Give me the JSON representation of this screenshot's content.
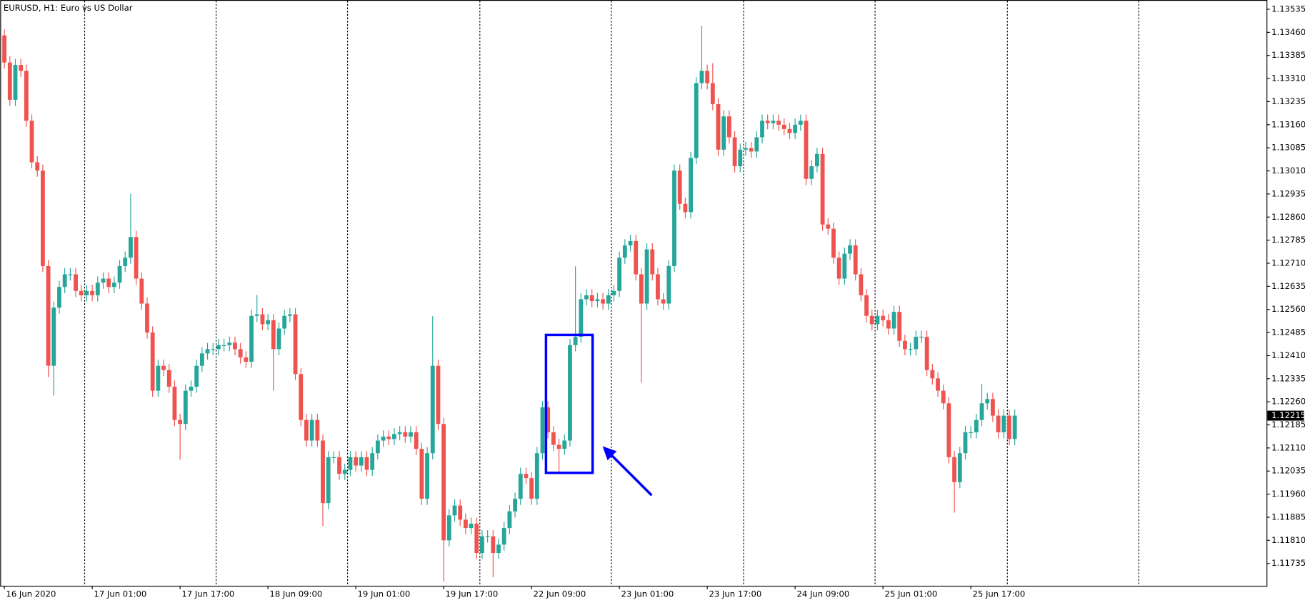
{
  "chart_data": {
    "type": "candlestick",
    "title": "EURUSD, H1:  Euro vs US Dollar",
    "up_color": "#26a69a",
    "down_color": "#ef5350",
    "grid": false,
    "ylim": [
      1.11662,
      1.13557
    ],
    "yticks": [
      1.13535,
      {
        "value": 1.1346,
        "label": "1.13460"
      },
      1.13385,
      {
        "value": 1.1331,
        "label": "1.13310"
      },
      1.13235,
      {
        "value": 1.1316,
        "label": "1.13160"
      },
      1.13085,
      {
        "value": 1.1301,
        "label": "1.13010"
      },
      1.12935,
      {
        "value": 1.1286,
        "label": "1.12860"
      },
      1.12785,
      {
        "value": 1.1271,
        "label": "1.12710"
      },
      1.12635,
      {
        "value": 1.1256,
        "label": "1.12560"
      },
      1.12485,
      {
        "value": 1.1241,
        "label": "1.12410"
      },
      1.12335,
      {
        "value": 1.1226,
        "label": "1.12260"
      },
      1.12185,
      {
        "value": 1.1211,
        "label": "1.12110"
      },
      1.12035,
      {
        "value": 1.1196,
        "label": "1.11960"
      },
      1.11885,
      {
        "value": 1.1181,
        "label": "1.11810"
      },
      1.11735
    ],
    "last_price": 1.12215,
    "categories": [
      "16 Jun 2020",
      null,
      null,
      null,
      null,
      null,
      null,
      null,
      null,
      null,
      null,
      null,
      null,
      null,
      null,
      null,
      "17 Jun 01:00",
      null,
      null,
      null,
      null,
      null,
      null,
      null,
      null,
      null,
      null,
      null,
      null,
      null,
      null,
      null,
      "17 Jun 17:00",
      null,
      null,
      null,
      null,
      null,
      null,
      null,
      null,
      null,
      null,
      null,
      null,
      null,
      null,
      null,
      "18 Jun 09:00",
      null,
      null,
      null,
      null,
      null,
      null,
      null,
      null,
      null,
      null,
      null,
      null,
      null,
      null,
      null,
      "19 Jun 01:00",
      null,
      null,
      null,
      null,
      null,
      null,
      null,
      null,
      null,
      null,
      null,
      null,
      null,
      null,
      null,
      "19 Jun 17:00",
      null,
      null,
      null,
      null,
      null,
      null,
      null,
      null,
      null,
      null,
      null,
      null,
      null,
      null,
      null,
      "22 Jun 09:00",
      null,
      null,
      null,
      null,
      null,
      null,
      null,
      null,
      null,
      null,
      null,
      null,
      null,
      null,
      null,
      "23 Jun 01:00",
      null,
      null,
      null,
      null,
      null,
      null,
      null,
      null,
      null,
      null,
      null,
      null,
      null,
      null,
      null,
      "23 Jun 17:00",
      null,
      null,
      null,
      null,
      null,
      null,
      null,
      null,
      null,
      null,
      null,
      null,
      null,
      null,
      null,
      "24 Jun 09:00",
      null,
      null,
      null,
      null,
      null,
      null,
      null,
      null,
      null,
      null,
      null,
      null,
      null,
      null,
      null,
      "25 Jun 01:00",
      null,
      null,
      null,
      null,
      null,
      null,
      null,
      null,
      null,
      null,
      null,
      null,
      null,
      null,
      null,
      "25 Jun 17:00",
      null,
      null,
      null,
      null,
      null,
      null,
      null,
      null
    ],
    "open": [
      1.1345,
      1.13362,
      1.13241,
      1.13354,
      1.13335,
      1.13173,
      1.13038,
      1.13011,
      1.12701,
      1.12377,
      1.12566,
      1.12633,
      1.12674,
      1.12674,
      1.1262,
      1.12606,
      1.1262,
      1.12606,
      1.12647,
      1.1266,
      1.12633,
      1.12647,
      1.12701,
      1.12728,
      1.12795,
      1.1266,
      1.12579,
      1.12485,
      1.12296,
      1.12377,
      1.12363,
      1.12309,
      1.12201,
      1.12188,
      1.12296,
      1.12309,
      1.12377,
      1.12417,
      1.12431,
      1.12431,
      1.12444,
      1.12444,
      1.12452,
      1.12431,
      1.12404,
      1.1239,
      1.12539,
      1.12544,
      1.12512,
      1.12525,
      1.12431,
      1.12498,
      1.12539,
      1.12544,
      1.1235,
      1.12201,
      1.12134,
      1.12201,
      1.12134,
      1.11931,
      1.1208,
      1.1208,
      1.12026,
      1.12039,
      1.1208,
      1.12053,
      1.1208,
      1.12039,
      1.12093,
      1.12134,
      1.12147,
      1.12139,
      1.12155,
      1.12161,
      1.12147,
      1.12161,
      1.12107,
      1.11945,
      1.12093,
      1.12377,
      1.12188,
      1.1181,
      1.11891,
      1.11923,
      1.11877,
      1.1185,
      1.11864,
      1.11769,
      1.11823,
      1.11823,
      1.11769,
      1.11796,
      1.1185,
      1.11904,
      1.11945,
      1.12026,
      1.12012,
      1.11945,
      1.12093,
      1.12242,
      1.12161,
      1.1212,
      1.12107,
      1.12134,
      1.12444,
      1.12471,
      1.12593,
      1.12606,
      1.12587,
      1.12593,
      1.12579,
      1.12606,
      1.1262,
      1.12728,
      1.12768,
      1.12782,
      1.12674,
      1.12579,
      1.12755,
      1.12674,
      1.12593,
      1.12579,
      1.12701,
      1.13011,
      1.12903,
      1.12876,
      1.13052,
      1.13295,
      1.13335,
      1.13295,
      1.13227,
      1.13079,
      1.13187,
      1.13119,
      1.13025,
      1.13079,
      1.13084,
      1.13073,
      1.13119,
      1.13173,
      1.13165,
      1.13173,
      1.1316,
      1.13146,
      1.13133,
      1.1316,
      1.13173,
      1.12984,
      1.13025,
      1.13065,
      1.12836,
      1.12822,
      1.12728,
      1.1266,
      1.12741,
      1.12768,
      1.12674,
      1.12606,
      1.12539,
      1.12512,
      1.12539,
      1.12525,
      1.12498,
      1.12552,
      1.12458,
      1.12431,
      1.12431,
      1.12471,
      1.12471,
      1.12363,
      1.12336,
      1.12296,
      1.12255,
      1.1208,
      1.11999,
      1.12093,
      1.12161,
      1.12161,
      1.12201,
      1.12255,
      1.12269,
      1.12215,
      1.12161,
      1.12215,
      1.12139
    ],
    "high": [
      1.1347,
      1.13382,
      1.13374,
      1.13374,
      1.13355,
      1.13193,
      1.13058,
      1.13031,
      1.12721,
      1.12586,
      1.12653,
      1.12694,
      1.12694,
      1.12694,
      1.1264,
      1.1264,
      1.1264,
      1.12667,
      1.1268,
      1.1268,
      1.12667,
      1.12721,
      1.12748,
      1.12936,
      1.12815,
      1.1268,
      1.12599,
      1.12505,
      1.12397,
      1.12397,
      1.12383,
      1.12329,
      1.12221,
      1.12316,
      1.12329,
      1.12397,
      1.12437,
      1.12451,
      1.12451,
      1.12464,
      1.12464,
      1.12472,
      1.12472,
      1.12451,
      1.12424,
      1.12559,
      1.12607,
      1.12564,
      1.12545,
      1.12545,
      1.12518,
      1.12559,
      1.12564,
      1.12564,
      1.1237,
      1.12221,
      1.12221,
      1.12221,
      1.12154,
      1.121,
      1.121,
      1.121,
      1.12059,
      1.121,
      1.121,
      1.121,
      1.121,
      1.12113,
      1.12154,
      1.12167,
      1.12167,
      1.12175,
      1.12181,
      1.12181,
      1.12181,
      1.12181,
      1.12127,
      1.12113,
      1.12538,
      1.12397,
      1.12208,
      1.11911,
      1.11943,
      1.11943,
      1.11897,
      1.11884,
      1.11884,
      1.11843,
      1.11843,
      1.11843,
      1.11816,
      1.1187,
      1.11924,
      1.11965,
      1.12046,
      1.12046,
      1.12032,
      1.12113,
      1.12262,
      1.12262,
      1.12181,
      1.1214,
      1.12154,
      1.12464,
      1.127,
      1.12613,
      1.12626,
      1.12626,
      1.12613,
      1.12613,
      1.12626,
      1.1264,
      1.12748,
      1.12788,
      1.12802,
      1.12802,
      1.12694,
      1.12775,
      1.12775,
      1.12694,
      1.12613,
      1.12721,
      1.13031,
      1.13031,
      1.12923,
      1.13072,
      1.13315,
      1.13481,
      1.13355,
      1.1336,
      1.13247,
      1.13207,
      1.13207,
      1.13139,
      1.13099,
      1.13104,
      1.13104,
      1.13139,
      1.13193,
      1.13193,
      1.13193,
      1.13193,
      1.1318,
      1.13166,
      1.1318,
      1.13193,
      1.13193,
      1.13045,
      1.13085,
      1.13085,
      1.12856,
      1.12842,
      1.12748,
      1.12761,
      1.12788,
      1.12788,
      1.12694,
      1.12626,
      1.12559,
      1.12559,
      1.12559,
      1.12545,
      1.12572,
      1.12572,
      1.12478,
      1.12451,
      1.12491,
      1.12491,
      1.12491,
      1.12383,
      1.12356,
      1.12316,
      1.12275,
      1.121,
      1.12113,
      1.12181,
      1.12181,
      1.12221,
      1.12318,
      1.12289,
      1.12289,
      1.12235,
      1.12235,
      1.12235,
      1.12235
    ],
    "low": [
      1.13342,
      1.13221,
      1.13221,
      1.13315,
      1.13153,
      1.13018,
      1.12991,
      1.12681,
      1.1234,
      1.1228,
      1.12546,
      1.12613,
      1.12654,
      1.126,
      1.12586,
      1.12586,
      1.12586,
      1.12586,
      1.12627,
      1.12613,
      1.12613,
      1.12627,
      1.12681,
      1.12708,
      1.1264,
      1.12559,
      1.12465,
      1.12276,
      1.12276,
      1.12343,
      1.12289,
      1.12181,
      1.12072,
      1.12168,
      1.12276,
      1.12289,
      1.12357,
      1.12397,
      1.12411,
      1.12411,
      1.12424,
      1.12424,
      1.12411,
      1.12384,
      1.1237,
      1.1237,
      1.12519,
      1.12492,
      1.12492,
      1.12296,
      1.12411,
      1.12478,
      1.12519,
      1.1233,
      1.12181,
      1.12114,
      1.12114,
      1.12114,
      1.11856,
      1.11911,
      1.1206,
      1.12006,
      1.12006,
      1.12019,
      1.12033,
      1.12033,
      1.12019,
      1.12019,
      1.12073,
      1.12114,
      1.12119,
      1.12119,
      1.12135,
      1.12127,
      1.12127,
      1.12087,
      1.11925,
      1.11925,
      1.12073,
      1.12168,
      1.11676,
      1.1179,
      1.11871,
      1.11857,
      1.1183,
      1.1183,
      1.11749,
      1.11749,
      1.11803,
      1.1169,
      1.11749,
      1.11776,
      1.1183,
      1.11884,
      1.11925,
      1.11992,
      1.11925,
      1.11925,
      1.12073,
      1.12141,
      1.121,
      1.12032,
      1.12087,
      1.12114,
      1.12424,
      1.12451,
      1.12573,
      1.12567,
      1.12567,
      1.12559,
      1.12559,
      1.12586,
      1.126,
      1.12708,
      1.12748,
      1.12654,
      1.12322,
      1.12559,
      1.12654,
      1.12573,
      1.12559,
      1.12559,
      1.12681,
      1.12883,
      1.12856,
      1.12856,
      1.13032,
      1.13275,
      1.13275,
      1.13207,
      1.13059,
      1.13059,
      1.13099,
      1.13005,
      1.13005,
      1.13059,
      1.13053,
      1.13053,
      1.13099,
      1.13145,
      1.13145,
      1.1314,
      1.13126,
      1.13113,
      1.13113,
      1.1314,
      1.12964,
      1.12964,
      1.13005,
      1.12816,
      1.12802,
      1.12708,
      1.1264,
      1.1264,
      1.12721,
      1.12654,
      1.12586,
      1.12519,
      1.12492,
      1.12492,
      1.12505,
      1.12478,
      1.12478,
      1.12438,
      1.12411,
      1.12411,
      1.12411,
      1.12451,
      1.12343,
      1.12316,
      1.12276,
      1.12235,
      1.1206,
      1.119,
      1.11979,
      1.12073,
      1.12141,
      1.12141,
      1.12181,
      1.12235,
      1.12195,
      1.12141,
      1.12141,
      1.12119,
      1.12119
    ],
    "close": [
      1.13362,
      1.13241,
      1.13354,
      1.13335,
      1.13173,
      1.13038,
      1.13011,
      1.12701,
      1.12377,
      1.12566,
      1.12633,
      1.12674,
      1.12674,
      1.1262,
      1.12606,
      1.1262,
      1.12606,
      1.12647,
      1.1266,
      1.12633,
      1.12647,
      1.12701,
      1.12728,
      1.12795,
      1.1266,
      1.12579,
      1.12485,
      1.12296,
      1.12377,
      1.12363,
      1.12309,
      1.12201,
      1.12188,
      1.12296,
      1.12309,
      1.12377,
      1.12417,
      1.12431,
      1.12431,
      1.12444,
      1.12444,
      1.12452,
      1.12431,
      1.12404,
      1.1239,
      1.12539,
      1.12544,
      1.12512,
      1.12525,
      1.12431,
      1.12498,
      1.12539,
      1.12544,
      1.1235,
      1.12201,
      1.12134,
      1.12201,
      1.12134,
      1.11931,
      1.1208,
      1.1208,
      1.12026,
      1.12039,
      1.1208,
      1.12053,
      1.1208,
      1.12039,
      1.12093,
      1.12134,
      1.12147,
      1.12139,
      1.12155,
      1.12161,
      1.12147,
      1.12161,
      1.12107,
      1.11945,
      1.12093,
      1.12377,
      1.12188,
      1.1181,
      1.11891,
      1.11923,
      1.11877,
      1.1185,
      1.11864,
      1.11769,
      1.11823,
      1.11823,
      1.11769,
      1.11796,
      1.1185,
      1.11904,
      1.11945,
      1.12026,
      1.12012,
      1.11945,
      1.12093,
      1.12242,
      1.12161,
      1.1212,
      1.12107,
      1.12134,
      1.12444,
      1.12471,
      1.12593,
      1.12606,
      1.12587,
      1.12593,
      1.12579,
      1.12606,
      1.1262,
      1.12728,
      1.12768,
      1.12782,
      1.12674,
      1.12579,
      1.12755,
      1.12674,
      1.12593,
      1.12579,
      1.12701,
      1.13011,
      1.12903,
      1.12876,
      1.13052,
      1.13295,
      1.13335,
      1.13295,
      1.13227,
      1.13079,
      1.13187,
      1.13119,
      1.13025,
      1.13079,
      1.13084,
      1.13073,
      1.13119,
      1.13173,
      1.13165,
      1.13173,
      1.1316,
      1.13146,
      1.13133,
      1.1316,
      1.13173,
      1.12984,
      1.13025,
      1.13065,
      1.12836,
      1.12822,
      1.12728,
      1.1266,
      1.12741,
      1.12768,
      1.12674,
      1.12606,
      1.12539,
      1.12512,
      1.12539,
      1.12525,
      1.12498,
      1.12552,
      1.12458,
      1.12431,
      1.12431,
      1.12471,
      1.12471,
      1.12363,
      1.12336,
      1.12296,
      1.12255,
      1.1208,
      1.11999,
      1.12093,
      1.12161,
      1.12161,
      1.12201,
      1.12255,
      1.12269,
      1.12215,
      1.12161,
      1.12215,
      1.12139,
      1.12215
    ]
  }
}
